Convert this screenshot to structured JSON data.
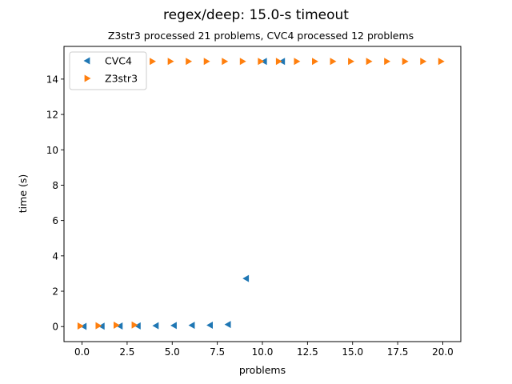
{
  "chart_data": {
    "type": "scatter",
    "title": "regex/deep: 15.0-s timeout",
    "subtitle": "Z3str3 processed 21 problems, CVC4 processed 12 problems",
    "xlabel": "problems",
    "ylabel": "time (s)",
    "xlim": [
      -1.0,
      21.0
    ],
    "ylim": [
      -0.85,
      15.85
    ],
    "xticks": [
      0.0,
      2.5,
      5.0,
      7.5,
      10.0,
      12.5,
      15.0,
      17.5,
      20.0
    ],
    "xtick_labels": [
      "0.0",
      "2.5",
      "5.0",
      "7.5",
      "10.0",
      "12.5",
      "15.0",
      "17.5",
      "20.0"
    ],
    "yticks": [
      0,
      2,
      4,
      6,
      8,
      10,
      12,
      14
    ],
    "ytick_labels": [
      "0",
      "2",
      "4",
      "6",
      "8",
      "10",
      "12",
      "14"
    ],
    "grid": false,
    "legend_position": "top-left",
    "series": [
      {
        "name": "CVC4",
        "color": "#1f77b4",
        "marker": "triangle-left",
        "x": [
          0.1,
          1.1,
          2.1,
          3.1,
          4.1,
          5.1,
          6.1,
          7.1,
          8.1,
          9.1,
          10.1,
          11.1
        ],
        "y": [
          0.01,
          0.02,
          0.03,
          0.04,
          0.05,
          0.06,
          0.07,
          0.08,
          0.12,
          2.72,
          15.0,
          15.0
        ]
      },
      {
        "name": "Z3str3",
        "color": "#ff7f0e",
        "marker": "triangle-right",
        "x": [
          -0.1,
          0.9,
          1.9,
          2.9,
          3.9,
          4.9,
          5.9,
          6.9,
          7.9,
          8.9,
          9.9,
          10.9,
          11.9,
          12.9,
          13.9,
          14.9,
          15.9,
          16.9,
          17.9,
          18.9,
          19.9
        ],
        "y": [
          0.03,
          0.05,
          0.08,
          0.09,
          15.0,
          15.0,
          15.0,
          15.0,
          15.0,
          15.0,
          15.0,
          15.0,
          15.0,
          15.0,
          15.0,
          15.0,
          15.0,
          15.0,
          15.0,
          15.0,
          15.0
        ]
      }
    ]
  }
}
